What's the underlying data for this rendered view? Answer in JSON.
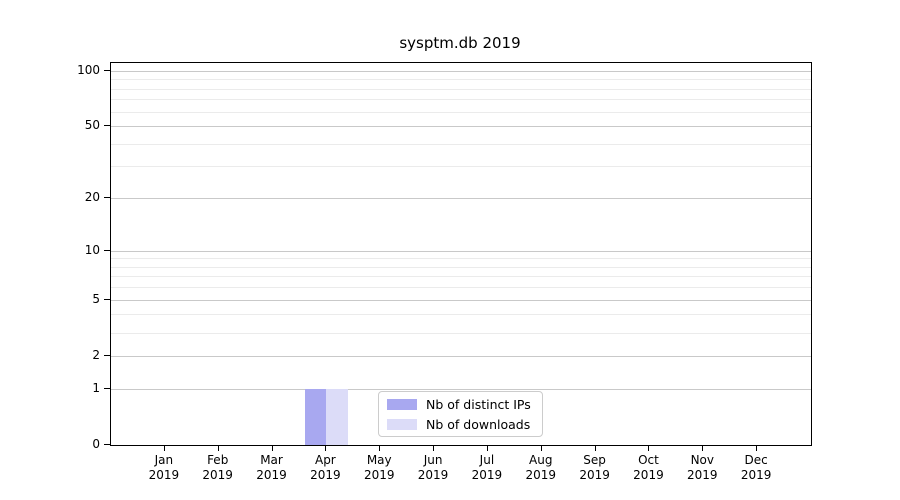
{
  "chart_data": {
    "type": "bar",
    "title": "sysptm.db 2019",
    "categories": [
      "Jan",
      "Feb",
      "Mar",
      "Apr",
      "May",
      "Jun",
      "Jul",
      "Aug",
      "Sep",
      "Oct",
      "Nov",
      "Dec"
    ],
    "category_year": "2019",
    "series": [
      {
        "name": "Nb of distinct IPs",
        "color": "#a8a8f0",
        "values": [
          0,
          0,
          0,
          1,
          0,
          0,
          0,
          0,
          0,
          0,
          0,
          0
        ]
      },
      {
        "name": "Nb of downloads",
        "color": "#dcdcf8",
        "values": [
          0,
          0,
          0,
          1,
          0,
          0,
          0,
          0,
          0,
          0,
          0,
          0
        ]
      }
    ],
    "xlabel": "",
    "ylabel": "",
    "y_scale": "log1p",
    "y_major_ticks": [
      0,
      1,
      2,
      5,
      10,
      20,
      50,
      100
    ],
    "y_minor_ticks": [
      3,
      4,
      6,
      7,
      8,
      9,
      30,
      40,
      60,
      70,
      80,
      90
    ],
    "ylim": [
      0,
      110
    ],
    "grid": {
      "major_color": "#c9c9c9",
      "minor_color": "#ebebeb",
      "axis": "y"
    },
    "legend": {
      "position": "lower center",
      "labels": [
        "Nb of distinct IPs",
        "Nb of downloads"
      ]
    }
  }
}
